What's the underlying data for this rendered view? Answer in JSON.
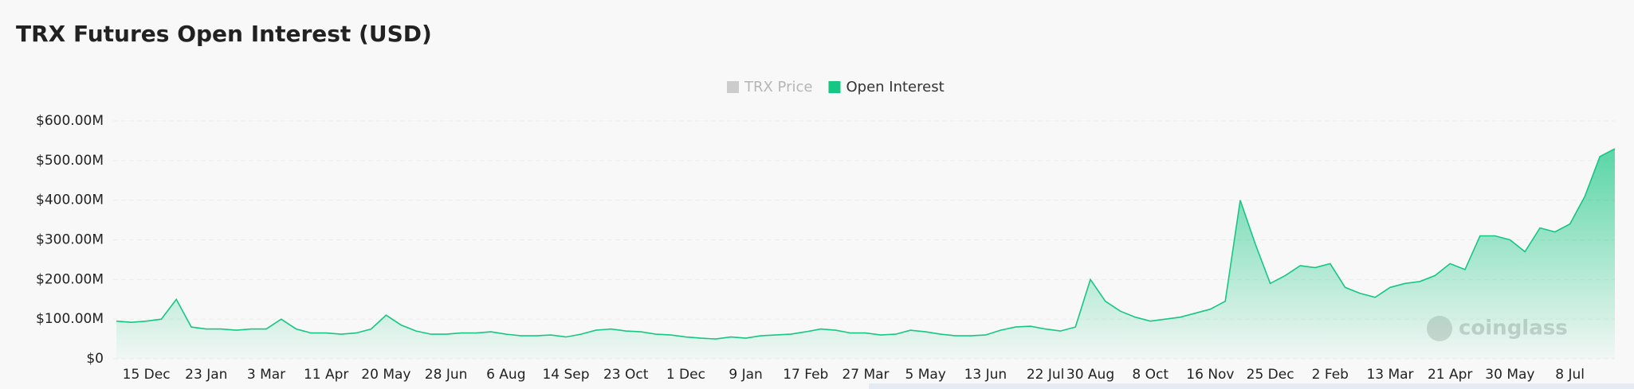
{
  "chart_data": {
    "type": "area",
    "title": "TRX Futures Open Interest (USD)",
    "hidden_series": [
      {
        "name": "TRX Price",
        "color": "#cccccc"
      }
    ],
    "watermark": "coinglass",
    "categories": [
      null,
      null,
      "15 Dec",
      null,
      null,
      null,
      "23 Jan",
      null,
      null,
      null,
      "3 Mar",
      null,
      null,
      null,
      "11 Apr",
      null,
      null,
      null,
      "20 May",
      null,
      null,
      null,
      "28 Jun",
      null,
      null,
      null,
      "6 Aug",
      null,
      null,
      null,
      "14 Sep",
      null,
      null,
      null,
      "23 Oct",
      null,
      null,
      null,
      "1 Dec",
      null,
      null,
      null,
      "9 Jan",
      null,
      null,
      null,
      "17 Feb",
      null,
      null,
      null,
      "27 Mar",
      null,
      null,
      null,
      "5 May",
      null,
      null,
      null,
      "13 Jun",
      null,
      null,
      null,
      "22 Jul",
      null,
      null,
      "30 Aug",
      null,
      null,
      null,
      "8 Oct",
      null,
      null,
      null,
      "16 Nov",
      null,
      null,
      null,
      "25 Dec",
      null,
      null,
      null,
      "2 Feb",
      null,
      null,
      null,
      "13 Mar",
      null,
      null,
      null,
      "21 Apr",
      null,
      null,
      null,
      "30 May",
      null,
      null,
      null,
      "8 Jul",
      null,
      null,
      null
    ],
    "series": [
      {
        "name": "Open Interest",
        "color": "#16c784",
        "values": [
          95000000,
          92000000,
          95000000,
          100000000,
          150000000,
          80000000,
          75000000,
          75000000,
          72000000,
          75000000,
          75000000,
          100000000,
          75000000,
          65000000,
          65000000,
          62000000,
          65000000,
          75000000,
          110000000,
          85000000,
          70000000,
          62000000,
          62000000,
          65000000,
          65000000,
          68000000,
          62000000,
          58000000,
          58000000,
          60000000,
          55000000,
          62000000,
          72000000,
          75000000,
          70000000,
          68000000,
          62000000,
          60000000,
          55000000,
          52000000,
          50000000,
          55000000,
          52000000,
          58000000,
          60000000,
          62000000,
          68000000,
          75000000,
          72000000,
          65000000,
          65000000,
          60000000,
          62000000,
          72000000,
          68000000,
          62000000,
          58000000,
          58000000,
          60000000,
          72000000,
          80000000,
          82000000,
          75000000,
          70000000,
          80000000,
          200000000,
          145000000,
          120000000,
          105000000,
          95000000,
          100000000,
          105000000,
          115000000,
          125000000,
          145000000,
          400000000,
          290000000,
          190000000,
          210000000,
          235000000,
          230000000,
          240000000,
          180000000,
          165000000,
          155000000,
          180000000,
          190000000,
          195000000,
          210000000,
          240000000,
          225000000,
          310000000,
          310000000,
          300000000,
          270000000,
          330000000,
          320000000,
          340000000,
          410000000,
          510000000,
          530000000
        ]
      }
    ],
    "ylim": [
      0,
      600000000
    ],
    "yticks": [
      {
        "value": 0,
        "label": "$0"
      },
      {
        "value": 100000000,
        "label": "$100.00M"
      },
      {
        "value": 200000000,
        "label": "$200.00M"
      },
      {
        "value": 300000000,
        "label": "$300.00M"
      },
      {
        "value": 400000000,
        "label": "$400.00M"
      },
      {
        "value": 500000000,
        "label": "$500.00M"
      },
      {
        "value": 600000000,
        "label": "$600.00M"
      }
    ],
    "grid": true
  }
}
